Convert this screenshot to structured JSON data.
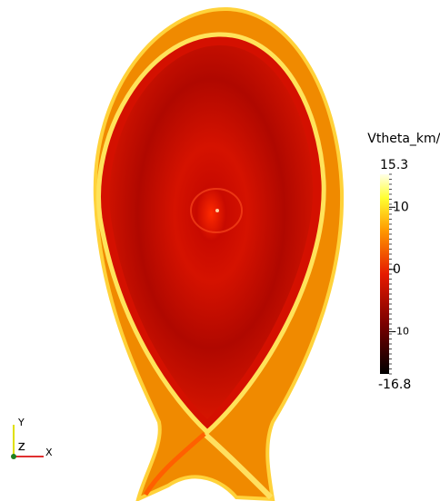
{
  "colorbar": {
    "title": "Vtheta_km/s",
    "range": [
      -16.8,
      15.3
    ],
    "ticks": [
      -10,
      0,
      10
    ]
  },
  "axes_triad": {
    "x": "X",
    "y": "Y",
    "z": "Z"
  }
}
